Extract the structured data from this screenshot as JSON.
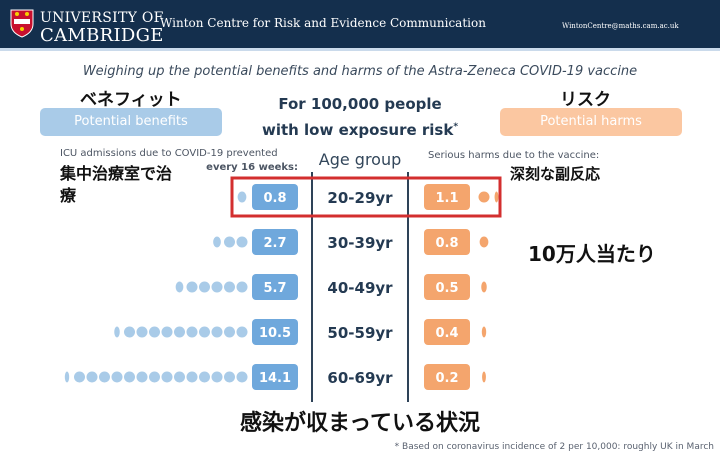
{
  "header": {
    "university_line1": "UNIVERSITY OF",
    "university_line2": "CAMBRIDGE",
    "centre": "Winton Centre for Risk and Evidence Communication",
    "email": "WintonCentre@maths.cam.ac.uk"
  },
  "colors": {
    "header_bg": "#142f4d",
    "benefit": "#a9cbe8",
    "benefit_box": "#6fa8dc",
    "harm": "#fbc7a1",
    "harm_box": "#f4a56d",
    "highlight": "#d32f2f"
  },
  "annotations": {
    "benefit_jp": "ベネフィット",
    "risk_jp": "リスク",
    "icu_jp": "集中治療室で治療",
    "serious_jp": "深刻な副反応",
    "per_100k_jp": "10万人当たり",
    "situation_jp": "感染が収まっている状況"
  },
  "chart_data": {
    "type": "table",
    "title": "Weighing up the potential benefits and harms of the Astra-Zeneca COVID-19 vaccine",
    "headline_line1": "For 100,000 people",
    "headline_line2": "with low exposure risk",
    "headline_mark": "*",
    "left_label": "Potential benefits",
    "right_label": "Potential harms",
    "center_header": "Age group",
    "left_header": "ICU admissions due to COVID-19 prevented",
    "left_header_2": "every 16 weeks:",
    "right_header": "Serious harms due to the vaccine:",
    "rows": [
      {
        "age": "20-29yr",
        "benefit": 0.8,
        "harm": 1.1,
        "highlight": true
      },
      {
        "age": "30-39yr",
        "benefit": 2.7,
        "harm": 0.8,
        "highlight": false
      },
      {
        "age": "40-49yr",
        "benefit": 5.7,
        "harm": 0.5,
        "highlight": false
      },
      {
        "age": "50-59yr",
        "benefit": 10.5,
        "harm": 0.4,
        "highlight": false
      },
      {
        "age": "60-69yr",
        "benefit": 14.1,
        "harm": 0.2,
        "highlight": false
      }
    ],
    "footnote": "* Based on coronavirus incidence of 2 per 10,000: roughly UK in March"
  }
}
